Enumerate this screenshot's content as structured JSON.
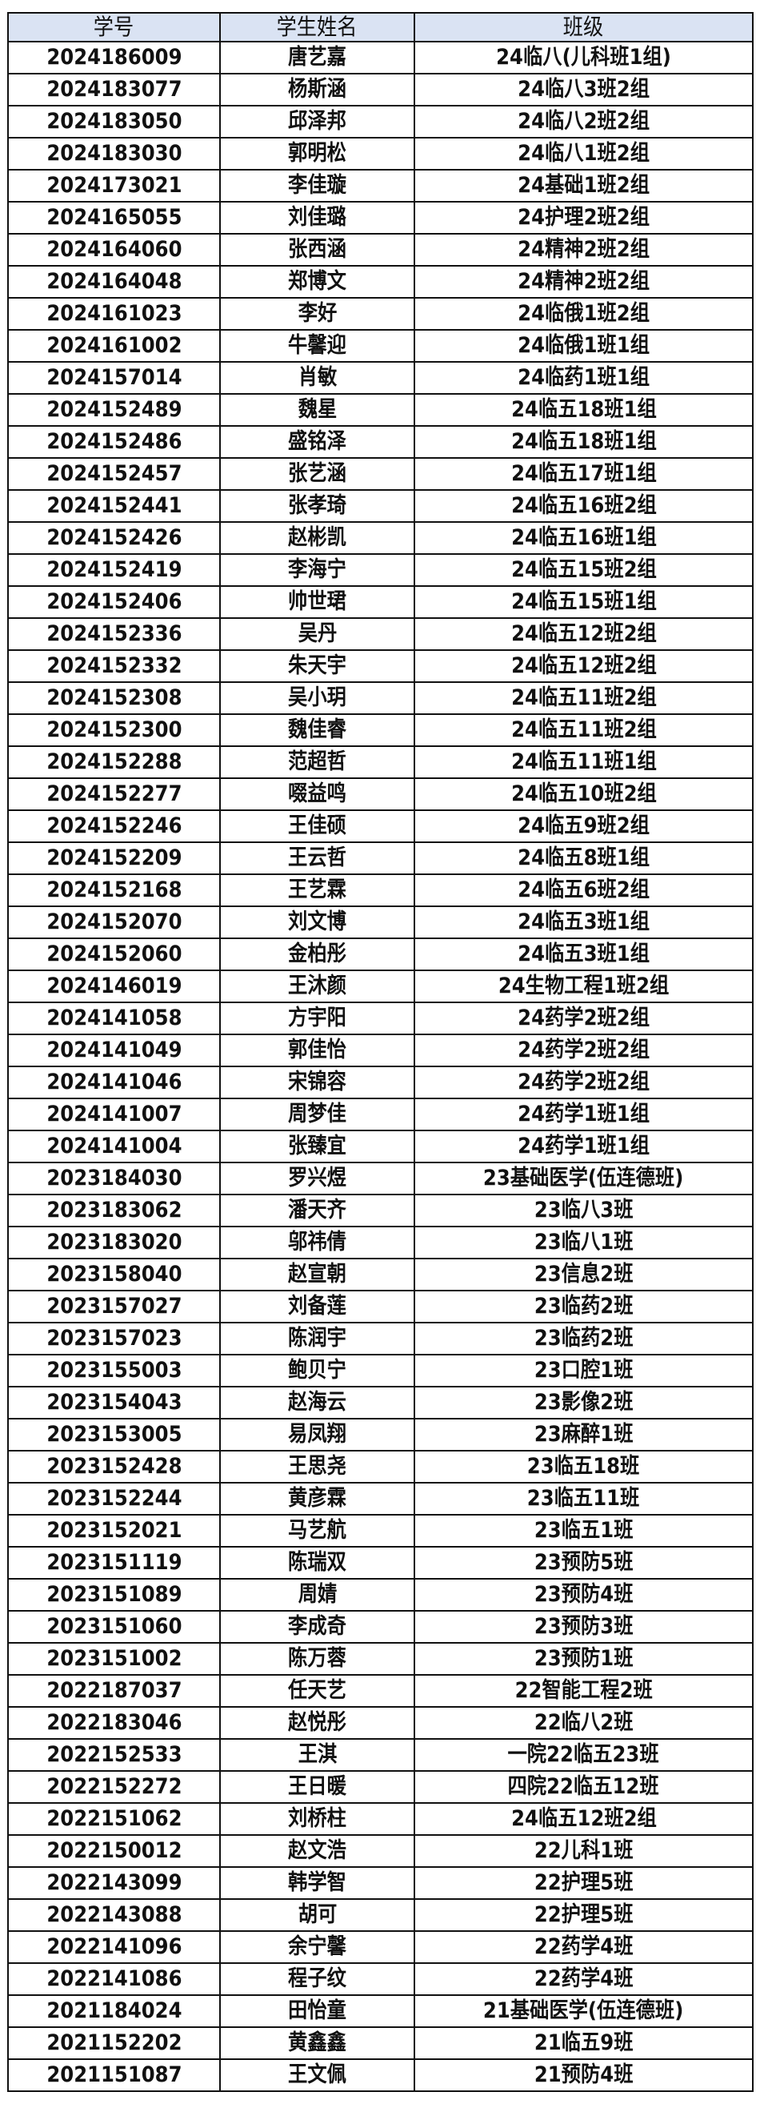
{
  "header_bg": "#dae3f3",
  "columns": [
    "学号",
    "学生姓名",
    "班级"
  ],
  "rows": [
    [
      "2024186009",
      "唐艺嘉",
      "24临八(儿科班1组)"
    ],
    [
      "2024183077",
      "杨斯涵",
      "24临八3班2组"
    ],
    [
      "2024183050",
      "邱泽邦",
      "24临八2班2组"
    ],
    [
      "2024183030",
      "郭明松",
      "24临八1班2组"
    ],
    [
      "2024173021",
      "李佳璇",
      "24基础1班2组"
    ],
    [
      "2024165055",
      "刘佳璐",
      "24护理2班2组"
    ],
    [
      "2024164060",
      "张西涵",
      "24精神2班2组"
    ],
    [
      "2024164048",
      "郑博文",
      "24精神2班2组"
    ],
    [
      "2024161023",
      "李好",
      "24临俄1班2组"
    ],
    [
      "2024161002",
      "牛馨迎",
      "24临俄1班1组"
    ],
    [
      "2024157014",
      "肖敏",
      "24临药1班1组"
    ],
    [
      "2024152489",
      "魏星",
      "24临五18班1组"
    ],
    [
      "2024152486",
      "盛铭泽",
      "24临五18班1组"
    ],
    [
      "2024152457",
      "张艺涵",
      "24临五17班1组"
    ],
    [
      "2024152441",
      "张孝琦",
      "24临五16班2组"
    ],
    [
      "2024152426",
      "赵彬凯",
      "24临五16班1组"
    ],
    [
      "2024152419",
      "李海宁",
      "24临五15班2组"
    ],
    [
      "2024152406",
      "帅世珺",
      "24临五15班1组"
    ],
    [
      "2024152336",
      "吴丹",
      "24临五12班2组"
    ],
    [
      "2024152332",
      "朱天宇",
      "24临五12班2组"
    ],
    [
      "2024152308",
      "吴小玥",
      "24临五11班2组"
    ],
    [
      "2024152300",
      "魏佳睿",
      "24临五11班2组"
    ],
    [
      "2024152288",
      "范超哲",
      "24临五11班1组"
    ],
    [
      "2024152277",
      "啜益鸣",
      "24临五10班2组"
    ],
    [
      "2024152246",
      "王佳硕",
      "24临五9班2组"
    ],
    [
      "2024152209",
      "王云哲",
      "24临五8班1组"
    ],
    [
      "2024152168",
      "王艺霖",
      "24临五6班2组"
    ],
    [
      "2024152070",
      "刘文博",
      "24临五3班1组"
    ],
    [
      "2024152060",
      "金柏彤",
      "24临五3班1组"
    ],
    [
      "2024146019",
      "王沐颜",
      "24生物工程1班2组"
    ],
    [
      "2024141058",
      "方宇阳",
      "24药学2班2组"
    ],
    [
      "2024141049",
      "郭佳怡",
      "24药学2班2组"
    ],
    [
      "2024141046",
      "宋锦容",
      "24药学2班2组"
    ],
    [
      "2024141007",
      "周梦佳",
      "24药学1班1组"
    ],
    [
      "2024141004",
      "张臻宜",
      "24药学1班1组"
    ],
    [
      "2023184030",
      "罗兴煜",
      "23基础医学(伍连德班)"
    ],
    [
      "2023183062",
      "潘天齐",
      "23临八3班"
    ],
    [
      "2023183020",
      "邬祎倩",
      "23临八1班"
    ],
    [
      "2023158040",
      "赵宣朝",
      "23信息2班"
    ],
    [
      "2023157027",
      "刘备莲",
      "23临药2班"
    ],
    [
      "2023157023",
      "陈润宇",
      "23临药2班"
    ],
    [
      "2023155003",
      "鲍贝宁",
      "23口腔1班"
    ],
    [
      "2023154043",
      "赵海云",
      "23影像2班"
    ],
    [
      "2023153005",
      "易凤翔",
      "23麻醉1班"
    ],
    [
      "2023152428",
      "王思尧",
      "23临五18班"
    ],
    [
      "2023152244",
      "黄彦霖",
      "23临五11班"
    ],
    [
      "2023152021",
      "马艺航",
      "23临五1班"
    ],
    [
      "2023151119",
      "陈瑞双",
      "23预防5班"
    ],
    [
      "2023151089",
      "周婧",
      "23预防4班"
    ],
    [
      "2023151060",
      "李成奇",
      "23预防3班"
    ],
    [
      "2023151002",
      "陈万蓉",
      "23预防1班"
    ],
    [
      "2022187037",
      "任天艺",
      "22智能工程2班"
    ],
    [
      "2022183046",
      "赵悦彤",
      "22临八2班"
    ],
    [
      "2022152533",
      "王淇",
      "一院22临五23班"
    ],
    [
      "2022152272",
      "王日暖",
      "四院22临五12班"
    ],
    [
      "2022151062",
      "刘桥柱",
      "24临五12班2组"
    ],
    [
      "2022150012",
      "赵文浩",
      "22儿科1班"
    ],
    [
      "2022143099",
      "韩学智",
      "22护理5班"
    ],
    [
      "2022143088",
      "胡可",
      "22护理5班"
    ],
    [
      "2022141096",
      "余宁馨",
      "22药学4班"
    ],
    [
      "2022141086",
      "程子纹",
      "22药学4班"
    ],
    [
      "2021184024",
      "田怡童",
      "21基础医学(伍连德班)"
    ],
    [
      "2021152202",
      "黄鑫鑫",
      "21临五9班"
    ],
    [
      "2021151087",
      "王文佩",
      "21预防4班"
    ]
  ]
}
